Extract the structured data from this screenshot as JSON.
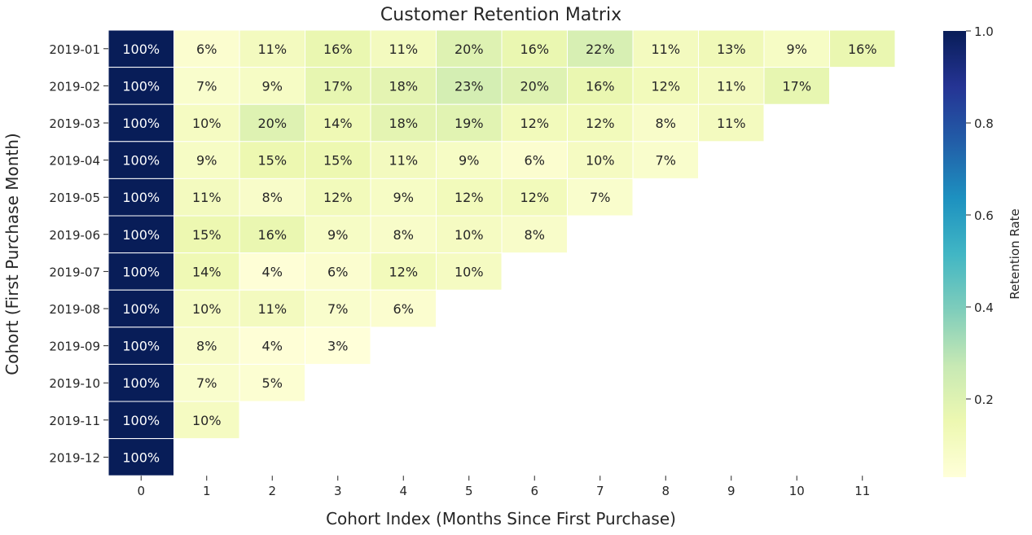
{
  "chart_data": {
    "type": "heatmap",
    "title": "Customer Retention Matrix",
    "xlabel": "Cohort Index (Months Since First Purchase)",
    "ylabel": "Cohort (First Purchase Month)",
    "colorbar_label": "Retention Rate",
    "colormap": "YlGnBu",
    "value_range": [
      0.03,
      1.0
    ],
    "colorbar_ticks": [
      "0.2",
      "0.4",
      "0.6",
      "0.8",
      "1.0"
    ],
    "x_categories": [
      "0",
      "1",
      "2",
      "3",
      "4",
      "5",
      "6",
      "7",
      "8",
      "9",
      "10",
      "11"
    ],
    "y_categories": [
      "2019-01",
      "2019-02",
      "2019-03",
      "2019-04",
      "2019-05",
      "2019-06",
      "2019-07",
      "2019-08",
      "2019-09",
      "2019-10",
      "2019-11",
      "2019-12"
    ],
    "values": [
      [
        1.0,
        0.06,
        0.11,
        0.16,
        0.11,
        0.2,
        0.16,
        0.22,
        0.11,
        0.13,
        0.09,
        0.16
      ],
      [
        1.0,
        0.07,
        0.09,
        0.17,
        0.18,
        0.23,
        0.2,
        0.16,
        0.12,
        0.11,
        0.17
      ],
      [
        1.0,
        0.1,
        0.2,
        0.14,
        0.18,
        0.19,
        0.12,
        0.12,
        0.08,
        0.11
      ],
      [
        1.0,
        0.09,
        0.15,
        0.15,
        0.11,
        0.09,
        0.06,
        0.1,
        0.07
      ],
      [
        1.0,
        0.11,
        0.08,
        0.12,
        0.09,
        0.12,
        0.12,
        0.07
      ],
      [
        1.0,
        0.15,
        0.16,
        0.09,
        0.08,
        0.1,
        0.08
      ],
      [
        1.0,
        0.14,
        0.04,
        0.06,
        0.12,
        0.1
      ],
      [
        1.0,
        0.1,
        0.11,
        0.07,
        0.06
      ],
      [
        1.0,
        0.08,
        0.04,
        0.03
      ],
      [
        1.0,
        0.07,
        0.05
      ],
      [
        1.0,
        0.1
      ],
      [
        1.0
      ]
    ],
    "cell_labels": [
      [
        "100%",
        "6%",
        "11%",
        "16%",
        "11%",
        "20%",
        "16%",
        "22%",
        "11%",
        "13%",
        "9%",
        "16%"
      ],
      [
        "100%",
        "7%",
        "9%",
        "17%",
        "18%",
        "23%",
        "20%",
        "16%",
        "12%",
        "11%",
        "17%"
      ],
      [
        "100%",
        "10%",
        "20%",
        "14%",
        "18%",
        "19%",
        "12%",
        "12%",
        "8%",
        "11%"
      ],
      [
        "100%",
        "9%",
        "15%",
        "15%",
        "11%",
        "9%",
        "6%",
        "10%",
        "7%"
      ],
      [
        "100%",
        "11%",
        "8%",
        "12%",
        "9%",
        "12%",
        "12%",
        "7%"
      ],
      [
        "100%",
        "15%",
        "16%",
        "9%",
        "8%",
        "10%",
        "8%"
      ],
      [
        "100%",
        "14%",
        "4%",
        "6%",
        "12%",
        "10%"
      ],
      [
        "100%",
        "10%",
        "11%",
        "7%",
        "6%"
      ],
      [
        "100%",
        "8%",
        "4%",
        "3%"
      ],
      [
        "100%",
        "7%",
        "5%"
      ],
      [
        "100%",
        "10%"
      ],
      [
        "100%"
      ]
    ]
  }
}
